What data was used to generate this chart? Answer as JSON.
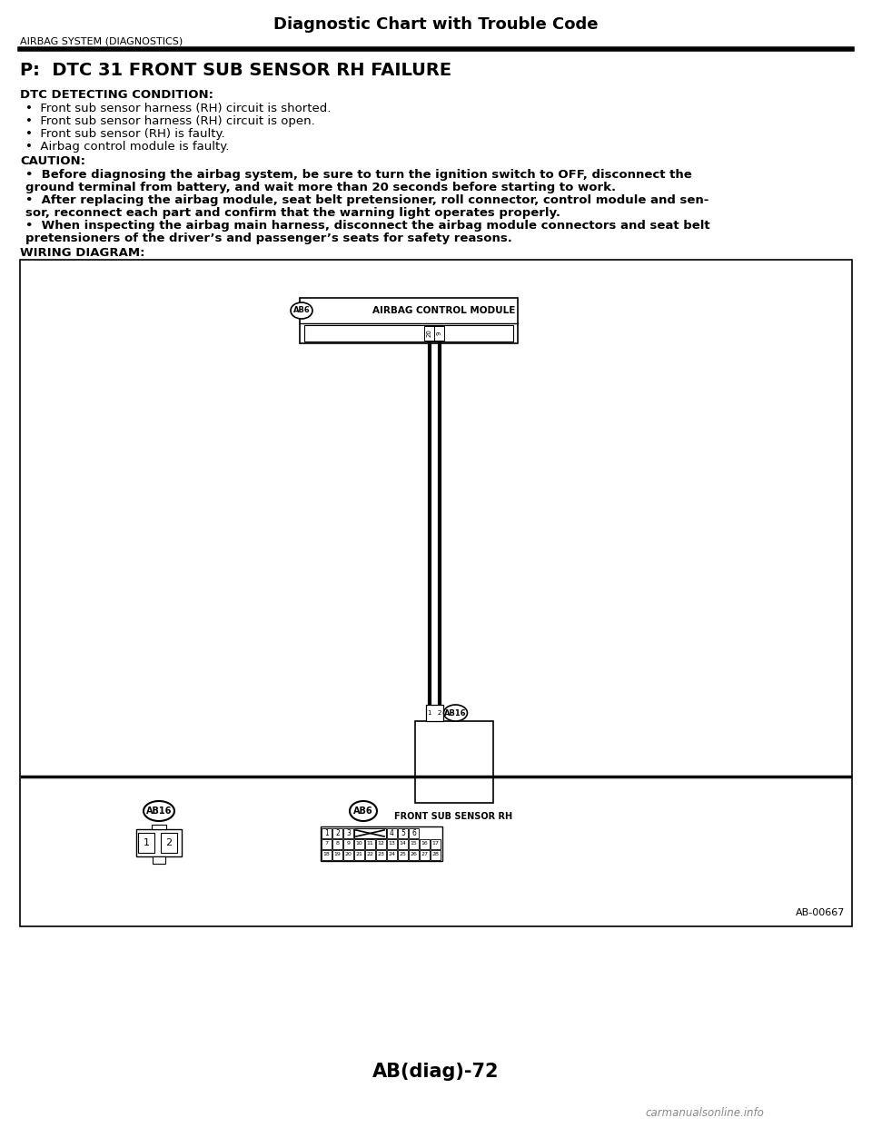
{
  "title": "Diagnostic Chart with Trouble Code",
  "subtitle": "AIRBAG SYSTEM (DIAGNOSTICS)",
  "heading": "P:  DTC 31 FRONT SUB SENSOR RH FAILURE",
  "dtc_label": "DTC DETECTING CONDITION:",
  "dtc_bullets": [
    "Front sub sensor harness (RH) circuit is shorted.",
    "Front sub sensor harness (RH) circuit is open.",
    "Front sub sensor (RH) is faulty.",
    "Airbag control module is faulty."
  ],
  "caution_label": "CAUTION:",
  "caution_bullets": [
    [
      "Before diagnosing the airbag system, be sure to turn the ignition switch to OFF, disconnect the",
      "ground terminal from battery, and wait more than 20 seconds before starting to work."
    ],
    [
      "After replacing the airbag module, seat belt pretensioner, roll connector, control module and sen-",
      "sor, reconnect each part and confirm that the warning light operates properly."
    ],
    [
      "When inspecting the airbag main harness, disconnect the airbag module connectors and seat belt",
      "pretensioners of the driver’s and passenger’s seats for safety reasons."
    ]
  ],
  "wiring_label": "WIRING DIAGRAM:",
  "page_label": "AB(diag)-72",
  "diagram_ref": "AB-00667",
  "bg_color": "#ffffff"
}
